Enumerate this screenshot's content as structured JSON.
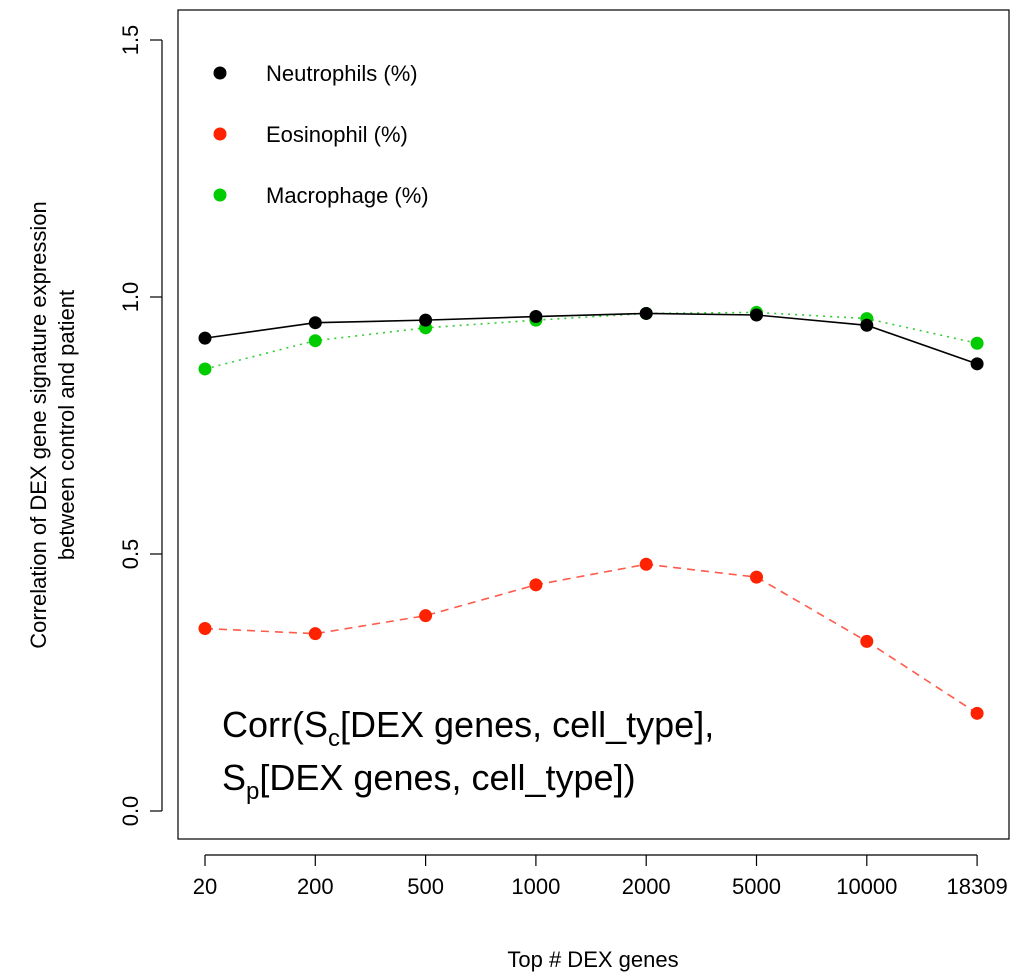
{
  "chart_data": {
    "type": "line",
    "xlabel": "Top # DEX genes",
    "ylabel_line1": "Correlation of DEX gene signature expression",
    "ylabel_line2": "between control and patient",
    "categories": [
      "20",
      "200",
      "500",
      "1000",
      "2000",
      "5000",
      "10000",
      "18309"
    ],
    "y_ticks": [
      "0.0",
      "0.5",
      "1.0",
      "1.5"
    ],
    "ylim": [
      0.0,
      1.5
    ],
    "grid": false,
    "legend_position": "top-left",
    "series": [
      {
        "name": "Neutrophils (%)",
        "color": "#000000",
        "line_style": "solid",
        "values": [
          0.92,
          0.95,
          0.955,
          0.962,
          0.968,
          0.965,
          0.945,
          0.87
        ]
      },
      {
        "name": "Eosinophil (%)",
        "color": "#ff2200",
        "line_style": "dashed",
        "values": [
          0.355,
          0.345,
          0.38,
          0.44,
          0.48,
          0.455,
          0.33,
          0.19
        ]
      },
      {
        "name": "Macrophage (%)",
        "color": "#00cc00",
        "line_style": "dotted",
        "values": [
          0.86,
          0.915,
          0.94,
          0.955,
          0.968,
          0.97,
          0.958,
          0.91
        ]
      }
    ],
    "annotation": {
      "line1": [
        "Corr(S",
        "c",
        "[DEX genes, cell_type],"
      ],
      "line2": [
        "S",
        "p",
        "[DEX genes, cell_type])"
      ]
    }
  }
}
